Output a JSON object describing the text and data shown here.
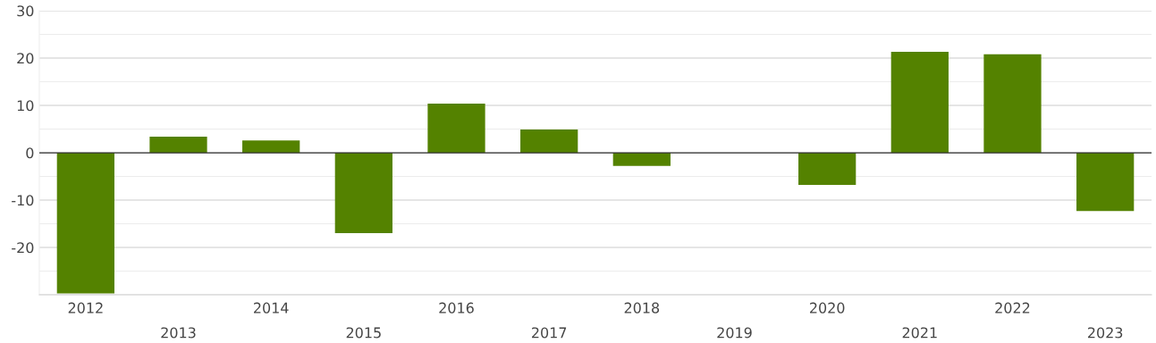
{
  "chart_data": {
    "type": "bar",
    "categories": [
      "2012",
      "2013",
      "2014",
      "2015",
      "2016",
      "2017",
      "2018",
      "2019",
      "2020",
      "2021",
      "2022",
      "2023"
    ],
    "values": [
      -29.7,
      3.4,
      2.6,
      -17.0,
      10.4,
      4.9,
      -2.8,
      0,
      -6.8,
      21.3,
      20.8,
      -12.3
    ],
    "color": "#548200",
    "ylim": [
      -30,
      30
    ],
    "yticks": [
      {
        "value": -30,
        "label": null
      },
      {
        "value": -25,
        "label": null
      },
      -20,
      {
        "value": -15,
        "label": null
      },
      -10,
      {
        "value": -5,
        "label": null
      },
      0,
      {
        "value": 5,
        "label": null
      },
      10,
      {
        "value": 15,
        "label": null
      },
      20,
      {
        "value": 25,
        "label": null
      },
      30
    ],
    "ref_lines": [
      {
        "axis": "y",
        "value": 0,
        "label": null,
        "color": "#333333"
      }
    ],
    "grid": "y"
  }
}
